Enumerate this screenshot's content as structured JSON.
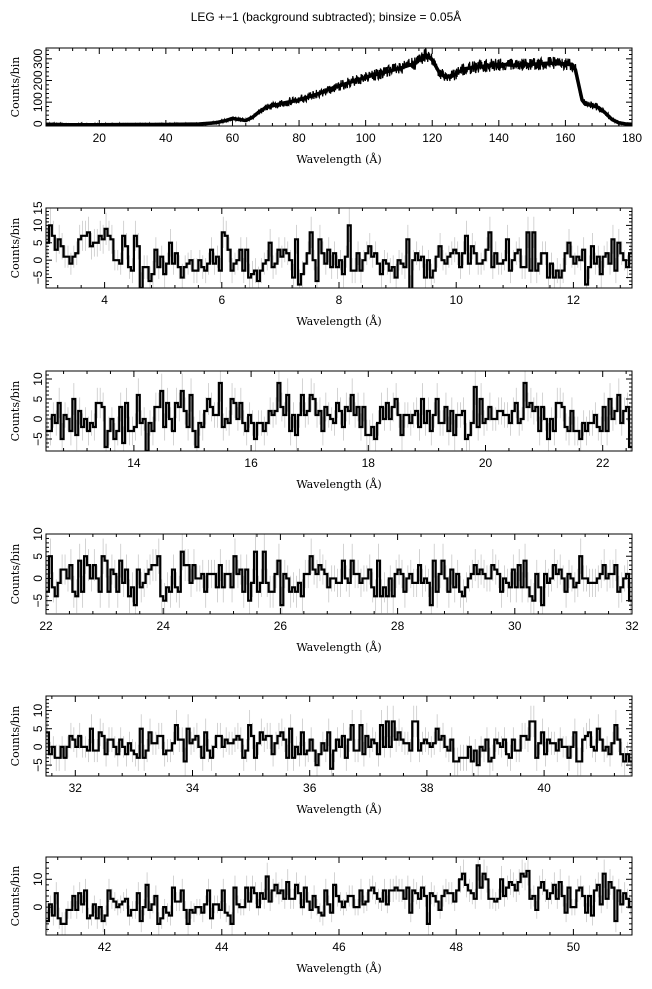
{
  "title": "LEG +−1 (background subtracted); binsize = 0.05Å",
  "colors": {
    "data": "#000000",
    "errorbar": "#c8c8c8",
    "axes": "#000000"
  },
  "chart_data": [
    {
      "type": "line",
      "xlabel": "Wavelength (Å)",
      "ylabel": "Counts/bin",
      "xlim": [
        4,
        180
      ],
      "ylim": [
        -10,
        350
      ],
      "xticks": [
        20,
        40,
        60,
        80,
        100,
        120,
        140,
        160,
        180
      ],
      "yticks": [
        0,
        100,
        200,
        300
      ],
      "ytick_labels": [
        "0",
        "100",
        "200",
        "300"
      ],
      "step": false,
      "series": [
        {
          "x": [
            4,
            10,
            20,
            30,
            40,
            50,
            55,
            58,
            60,
            62,
            64,
            66,
            68,
            70,
            75,
            80,
            85,
            90,
            95,
            100,
            105,
            110,
            115,
            118,
            120,
            122,
            124,
            126,
            128,
            130,
            135,
            140,
            145,
            150,
            155,
            160,
            162,
            163,
            164,
            165,
            166,
            168,
            170,
            172,
            174,
            176,
            178,
            180
          ],
          "y": [
            -2,
            -4,
            -4,
            -3,
            -3,
            -1,
            5,
            15,
            25,
            20,
            15,
            30,
            55,
            75,
            95,
            110,
            135,
            165,
            190,
            215,
            235,
            255,
            280,
            320,
            295,
            240,
            215,
            220,
            240,
            255,
            265,
            275,
            270,
            275,
            280,
            275,
            275,
            250,
            180,
            110,
            90,
            85,
            75,
            50,
            20,
            5,
            0,
            -2
          ]
        }
      ]
    },
    {
      "type": "line",
      "xlabel": "Wavelength (Å)",
      "ylabel": "Counts/bin",
      "xlim": [
        3,
        13
      ],
      "ylim": [
        -8,
        15
      ],
      "xticks": [
        4,
        6,
        8,
        10,
        12
      ],
      "yticks": [
        -5,
        0,
        5,
        10,
        15
      ],
      "ytick_labels": [
        "−5",
        "0",
        "5",
        "10",
        "15"
      ],
      "step": true,
      "seed": 11,
      "noise_sd": 3.5,
      "series": [
        {
          "x": [
            3,
            3.5,
            4,
            4.5,
            5,
            6,
            7,
            8,
            9,
            10,
            10.5,
            11,
            12,
            12.5,
            13
          ],
          "y": [
            6,
            3,
            5,
            1,
            0,
            0,
            0,
            0,
            0,
            0,
            1,
            0,
            0,
            1,
            0
          ]
        }
      ]
    },
    {
      "type": "line",
      "xlabel": "Wavelength (Å)",
      "ylabel": "Counts/bin",
      "xlim": [
        12.5,
        22.5
      ],
      "ylim": [
        -8,
        12
      ],
      "xticks": [
        14,
        16,
        18,
        20,
        22
      ],
      "yticks": [
        -5,
        0,
        5,
        10
      ],
      "ytick_labels": [
        "−5",
        "0",
        "5",
        "10"
      ],
      "step": true,
      "seed": 23,
      "noise_sd": 3.0,
      "series": [
        {
          "x": [
            12.5,
            14,
            15,
            15.5,
            16,
            17,
            17.5,
            18,
            19,
            20,
            21,
            22,
            22.5
          ],
          "y": [
            0,
            0,
            0,
            2,
            1,
            1,
            0,
            -1,
            0,
            0,
            0,
            0,
            0
          ]
        }
      ]
    },
    {
      "type": "line",
      "xlabel": "Wavelength (Å)",
      "ylabel": "Counts/bin",
      "xlim": [
        22,
        32
      ],
      "ylim": [
        -8,
        10
      ],
      "xticks": [
        22,
        24,
        26,
        28,
        30,
        32
      ],
      "yticks": [
        -5,
        0,
        5,
        10
      ],
      "ytick_labels": [
        "−5",
        "0",
        "5",
        "10"
      ],
      "step": true,
      "seed": 37,
      "noise_sd": 2.6,
      "series": [
        {
          "x": [
            22,
            24,
            26,
            27,
            28,
            29,
            30,
            31,
            32
          ],
          "y": [
            0,
            0,
            0,
            1,
            0,
            0,
            0,
            0,
            0
          ]
        }
      ]
    },
    {
      "type": "line",
      "xlabel": "Wavelength (Å)",
      "ylabel": "Counts/bin",
      "xlim": [
        31.5,
        41.5
      ],
      "ylim": [
        -8,
        14
      ],
      "xticks": [
        32,
        34,
        36,
        38,
        40
      ],
      "yticks": [
        -5,
        0,
        5,
        10
      ],
      "ytick_labels": [
        "−5",
        "0",
        "5",
        "10"
      ],
      "step": true,
      "seed": 51,
      "noise_sd": 2.9,
      "series": [
        {
          "x": [
            31.5,
            33,
            34,
            35,
            36,
            37,
            37.5,
            38,
            39,
            40,
            41,
            41.5
          ],
          "y": [
            0,
            1,
            0,
            1,
            -1,
            1,
            3,
            1,
            0,
            1,
            0,
            0
          ]
        }
      ]
    },
    {
      "type": "line",
      "xlabel": "Wavelength (Å)",
      "ylabel": "Counts/bin",
      "xlim": [
        41,
        51
      ],
      "ylim": [
        -10,
        18
      ],
      "xticks": [
        42,
        44,
        46,
        48,
        50
      ],
      "yticks": [
        0,
        10
      ],
      "ytick_labels": [
        "0",
        "10"
      ],
      "step": true,
      "seed": 67,
      "noise_sd": 3.6,
      "series": [
        {
          "x": [
            41,
            43,
            45,
            46,
            47,
            48,
            49,
            50,
            51
          ],
          "y": [
            -1,
            0,
            2,
            3,
            4,
            5,
            6,
            4,
            3
          ]
        }
      ]
    }
  ]
}
